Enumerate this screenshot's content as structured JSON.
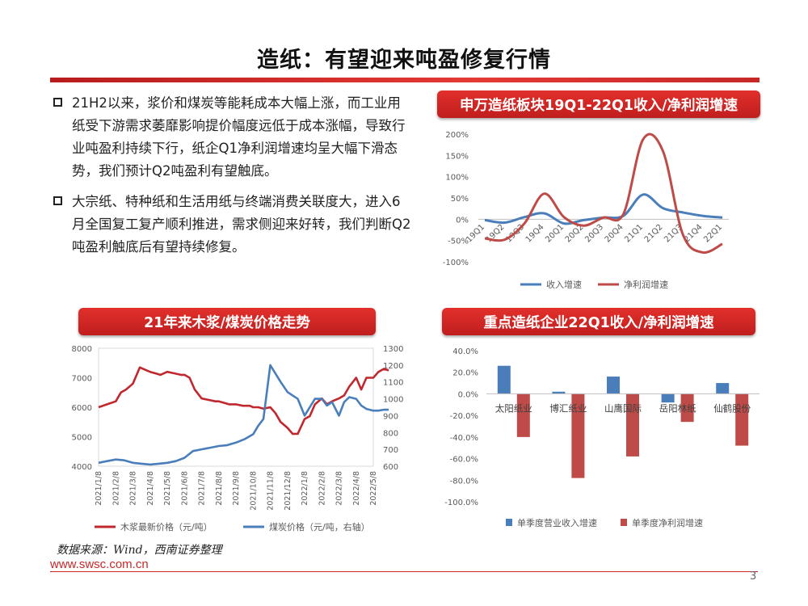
{
  "page": {
    "title": "造纸：有望迎来吨盈修复行情",
    "bullets": [
      "21H2以来，浆价和煤炭等能耗成本大幅上涨，而工业用纸受下游需求萎靡影响提价幅度远低于成本涨幅，导致行业吨盈利持续下行，纸企Q1净利润增速均呈大幅下滑态势，我们预计Q2吨盈利有望触底。",
      "大宗纸、特种纸和生活用纸与终端消费关联度大，进入6月全国复工复产顺利推进，需求侧迎来好转，我们判断Q2吨盈利触底后有望持续修复。"
    ],
    "source": "数据来源：Wind，西南证券整理",
    "url": "www.swsc.com.cn",
    "page_number": "3",
    "accent_color": "#c62828"
  },
  "chart_data": [
    {
      "id": "chart1",
      "type": "line",
      "title": "申万造纸板块19Q1-22Q1收入/净利润增速",
      "categories": [
        "19Q1",
        "19Q2",
        "19Q3",
        "19Q4",
        "20Q1",
        "20Q2",
        "20Q3",
        "20Q4",
        "21Q1",
        "21Q2",
        "21Q3",
        "21Q4",
        "22Q1"
      ],
      "y_ticks": [
        "200%",
        "150%",
        "100%",
        "50%",
        "0%",
        "-50%",
        "-100%"
      ],
      "ylim": [
        -100,
        200
      ],
      "series": [
        {
          "name": "收入增速",
          "color": "#4a7ebb",
          "values": [
            -2,
            -8,
            5,
            14,
            -10,
            -2,
            4,
            8,
            58,
            26,
            16,
            8,
            4
          ]
        },
        {
          "name": "净利润增速",
          "color": "#be4b48",
          "values": [
            -45,
            -48,
            -10,
            60,
            5,
            -15,
            4,
            12,
            188,
            160,
            -35,
            -78,
            -58
          ]
        }
      ],
      "legend_position": "bottom"
    },
    {
      "id": "chart2",
      "type": "line",
      "title": "21年来木浆/煤炭价格走势",
      "x_ticks": [
        "2021/1/8",
        "2021/2/8",
        "2021/3/8",
        "2021/4/8",
        "2021/5/8",
        "2021/6/8",
        "2021/7/8",
        "2021/8/8",
        "2021/9/8",
        "2021/10/8",
        "2021/11/8",
        "2021/12/8",
        "2022/1/8",
        "2022/2/8",
        "2022/3/8",
        "2022/4/8",
        "2022/5/8"
      ],
      "y_ticks_left": [
        "8000",
        "7000",
        "6000",
        "5000",
        "4000"
      ],
      "y_ticks_right": [
        "1300",
        "1200",
        "1100",
        "1000",
        "900",
        "800",
        "700",
        "600"
      ],
      "ylim_left": [
        4000,
        8000
      ],
      "ylim_right": [
        600,
        1300
      ],
      "series": [
        {
          "name": "木浆最新价格（元/吨）",
          "color": "#c0282e",
          "axis": "left",
          "x": [
            0,
            0.5,
            1,
            1.3,
            1.6,
            2,
            2.4,
            2.8,
            3,
            3.3,
            3.6,
            4,
            4.4,
            4.8,
            5,
            5.3,
            5.6,
            6,
            6.4,
            6.8,
            7,
            7.3,
            7.6,
            8,
            8.4,
            8.8,
            9,
            9.3,
            9.6,
            10,
            10.3,
            10.6,
            11,
            11.3,
            11.6,
            12,
            12.3,
            12.6,
            13,
            13.3,
            13.6,
            14,
            14.3,
            14.6,
            15,
            15.3,
            15.6,
            16,
            16.3,
            16.6,
            16.9
          ],
          "values": [
            6000,
            6100,
            6200,
            6500,
            6600,
            6800,
            7350,
            7250,
            7200,
            7150,
            7100,
            7200,
            7150,
            7100,
            7100,
            7000,
            6600,
            6300,
            6250,
            6200,
            6200,
            6150,
            6100,
            6100,
            6050,
            6050,
            6000,
            6000,
            5950,
            6000,
            5800,
            5500,
            5300,
            5100,
            5100,
            5600,
            5700,
            6100,
            6300,
            6100,
            6200,
            6300,
            6400,
            6700,
            7000,
            6600,
            7000,
            7000,
            7200,
            7300,
            7250
          ]
        },
        {
          "name": "煤炭价格（元/吨，右轴）",
          "color": "#4a7ebb",
          "axis": "right",
          "x": [
            0,
            0.5,
            1,
            1.5,
            2,
            2.5,
            3,
            3.5,
            4,
            4.5,
            5,
            5.5,
            6,
            6.5,
            7,
            7.5,
            8,
            8.5,
            9,
            9.3,
            9.6,
            10,
            10.3,
            10.6,
            11,
            11.3,
            11.6,
            12,
            12.3,
            12.6,
            13,
            13.3,
            13.6,
            14,
            14.3,
            14.6,
            15,
            15.3,
            15.6,
            16,
            16.3,
            16.6,
            16.9
          ],
          "values": [
            620,
            630,
            640,
            635,
            620,
            615,
            610,
            615,
            620,
            630,
            650,
            690,
            700,
            710,
            720,
            725,
            740,
            760,
            790,
            840,
            880,
            1200,
            1150,
            1100,
            1040,
            1020,
            1000,
            900,
            950,
            1000,
            1000,
            960,
            980,
            900,
            980,
            1010,
            1000,
            960,
            940,
            930,
            930,
            935,
            935
          ]
        }
      ],
      "legend_position": "bottom"
    },
    {
      "id": "chart3",
      "type": "bar",
      "title": "重点造纸企业22Q1收入/净利润增速",
      "categories": [
        "太阳纸业",
        "博汇纸业",
        "山鹰国际",
        "岳阳林纸",
        "仙鹤股份"
      ],
      "y_ticks": [
        "40.0%",
        "20.0%",
        "0.0%",
        "-20.0%",
        "-40.0%",
        "-60.0%",
        "-80.0%",
        "-100.0%"
      ],
      "ylim": [
        -100,
        40
      ],
      "series": [
        {
          "name": "单季度营业收入增速",
          "color": "#4a7ebb",
          "values": [
            26,
            2,
            16,
            -8,
            10
          ]
        },
        {
          "name": "单季度净利润增速",
          "color": "#be4b48",
          "values": [
            -40,
            -78,
            -58,
            -26,
            -48
          ]
        }
      ],
      "legend_position": "bottom"
    }
  ]
}
